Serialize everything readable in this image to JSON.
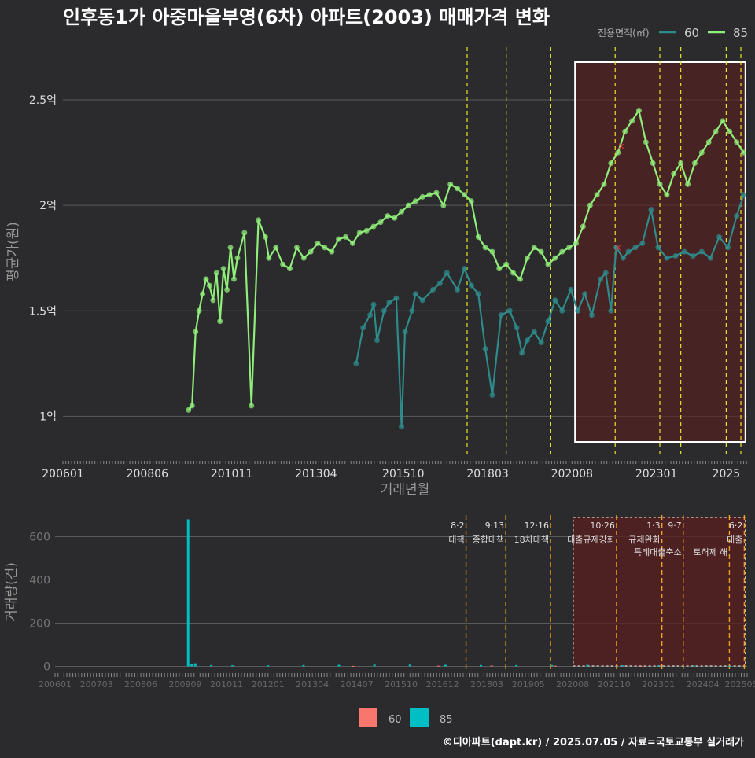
{
  "title": "인후동1가 아중마을부영(6차) 아파트(2003) 매매가격 변화",
  "credit": "©디아파트(dapt.kr) / 2025.07.05 / 자료=국토교통부 실거래가",
  "colors": {
    "background": "#2b2b2d",
    "grid": "#5a5a5a",
    "s60": "#2e8b8b",
    "s85": "#90ee7a",
    "bar60": "#f8766d",
    "bar85": "#00bfc4",
    "policy_line": "#e5e52a",
    "policy_line_bottom": "#f0a020",
    "highlight_fill": "#5a1e1e",
    "highlight_border": "#ffffff",
    "marker_x": "#e0303a"
  },
  "chart_data": [
    {
      "type": "line",
      "title": "인후동1가 아중마을부영(6차) 아파트(2003) 매매가격 변화",
      "xlabel": "거래년월",
      "ylabel": "평균가(원)",
      "legend_title": "전용면적(㎡)",
      "legend_position": "top-right",
      "x_ticks": [
        "200601",
        "200806",
        "201011",
        "201304",
        "201510",
        "201803",
        "202008",
        "202301",
        "2025"
      ],
      "y_ticks": [
        {
          "value": 1.0,
          "label": "1억"
        },
        {
          "value": 1.5,
          "label": "1.5억"
        },
        {
          "value": 2.0,
          "label": "2억"
        },
        {
          "value": 2.5,
          "label": "2.5억"
        }
      ],
      "xlim": [
        2006.0,
        2025.6
      ],
      "ylim": [
        0.8,
        2.75
      ],
      "grid": true,
      "highlight_range": [
        2020.67,
        2025.55
      ],
      "policy_dates": [
        2017.58,
        2018.7,
        2019.96,
        2021.82,
        2023.1,
        2023.7,
        2025.0,
        2025.42
      ],
      "series": [
        {
          "name": "60",
          "x": [
            2014.4,
            2014.6,
            2014.8,
            2014.9,
            2015.0,
            2015.2,
            2015.35,
            2015.55,
            2015.7,
            2015.8,
            2016.0,
            2016.1,
            2016.3,
            2016.6,
            2016.8,
            2017.0,
            2017.3,
            2017.5,
            2017.7,
            2017.9,
            2018.1,
            2018.3,
            2018.55,
            2018.8,
            2019.0,
            2019.15,
            2019.3,
            2019.5,
            2019.7,
            2019.9,
            2020.1,
            2020.3,
            2020.55,
            2020.75,
            2020.95,
            2021.15,
            2021.4,
            2021.55,
            2021.7,
            2021.85,
            2022.05,
            2022.2,
            2022.4,
            2022.6,
            2022.85,
            2023.05,
            2023.3,
            2023.55,
            2023.8,
            2024.05,
            2024.3,
            2024.55,
            2024.8,
            2025.05,
            2025.3,
            2025.5
          ],
          "y": [
            1.25,
            1.42,
            1.48,
            1.53,
            1.36,
            1.5,
            1.54,
            1.56,
            0.95,
            1.4,
            1.5,
            1.58,
            1.55,
            1.6,
            1.63,
            1.68,
            1.6,
            1.7,
            1.62,
            1.58,
            1.32,
            1.1,
            1.48,
            1.5,
            1.42,
            1.3,
            1.36,
            1.4,
            1.35,
            1.45,
            1.55,
            1.5,
            1.6,
            1.5,
            1.58,
            1.48,
            1.65,
            1.68,
            1.5,
            1.8,
            1.75,
            1.78,
            1.8,
            1.82,
            1.98,
            1.8,
            1.75,
            1.76,
            1.78,
            1.76,
            1.78,
            1.75,
            1.85,
            1.8,
            1.95,
            2.05
          ]
        },
        {
          "name": "85",
          "x": [
            2009.6,
            2009.7,
            2009.8,
            2009.9,
            2010.0,
            2010.1,
            2010.2,
            2010.3,
            2010.4,
            2010.5,
            2010.6,
            2010.7,
            2010.8,
            2010.9,
            2011.0,
            2011.2,
            2011.4,
            2011.6,
            2011.8,
            2011.9,
            2012.1,
            2012.3,
            2012.5,
            2012.7,
            2012.9,
            2013.1,
            2013.3,
            2013.5,
            2013.7,
            2013.9,
            2014.1,
            2014.3,
            2014.5,
            2014.7,
            2014.9,
            2015.1,
            2015.3,
            2015.5,
            2015.7,
            2015.9,
            2016.1,
            2016.3,
            2016.5,
            2016.7,
            2016.9,
            2017.1,
            2017.3,
            2017.5,
            2017.7,
            2017.9,
            2018.1,
            2018.3,
            2018.5,
            2018.7,
            2018.9,
            2019.1,
            2019.3,
            2019.5,
            2019.7,
            2019.9,
            2020.1,
            2020.3,
            2020.5,
            2020.7,
            2020.9,
            2021.1,
            2021.3,
            2021.5,
            2021.7,
            2021.9,
            2022.1,
            2022.3,
            2022.5,
            2022.7,
            2022.9,
            2023.1,
            2023.3,
            2023.5,
            2023.7,
            2023.9,
            2024.1,
            2024.3,
            2024.5,
            2024.7,
            2024.9,
            2025.1,
            2025.3,
            2025.5
          ],
          "y": [
            1.03,
            1.05,
            1.4,
            1.5,
            1.58,
            1.65,
            1.62,
            1.55,
            1.68,
            1.45,
            1.7,
            1.6,
            1.8,
            1.65,
            1.75,
            1.87,
            1.05,
            1.93,
            1.85,
            1.75,
            1.8,
            1.72,
            1.7,
            1.8,
            1.75,
            1.78,
            1.82,
            1.8,
            1.78,
            1.84,
            1.85,
            1.82,
            1.87,
            1.88,
            1.9,
            1.92,
            1.95,
            1.94,
            1.97,
            2.0,
            2.02,
            2.04,
            2.05,
            2.06,
            2.0,
            2.1,
            2.08,
            2.05,
            2.02,
            1.85,
            1.8,
            1.78,
            1.7,
            1.72,
            1.68,
            1.65,
            1.75,
            1.8,
            1.78,
            1.72,
            1.75,
            1.78,
            1.8,
            1.82,
            1.9,
            2.0,
            2.05,
            2.1,
            2.2,
            2.25,
            2.35,
            2.4,
            2.45,
            2.3,
            2.2,
            2.1,
            2.05,
            2.15,
            2.2,
            2.1,
            2.2,
            2.25,
            2.3,
            2.35,
            2.4,
            2.35,
            2.3,
            2.25
          ]
        }
      ],
      "markers_x": [
        {
          "x": 2022.0,
          "y": 2.28
        },
        {
          "x": 2021.9,
          "y": 1.8
        }
      ]
    },
    {
      "type": "bar",
      "xlabel": "",
      "ylabel": "거래량(건)",
      "legend_position": "bottom",
      "x_ticks": [
        "200601",
        "200703",
        "200806",
        "200909",
        "201011",
        "201201",
        "201304",
        "201407",
        "201510",
        "201612",
        "201803",
        "201905",
        "202008",
        "202110",
        "202301",
        "202404",
        "202505"
      ],
      "y_ticks": [
        0,
        200,
        400,
        600
      ],
      "ylim": [
        -20,
        700
      ],
      "xlim": [
        2006.0,
        2025.5
      ],
      "grid": true,
      "highlight_range": [
        2020.6,
        2025.45
      ],
      "series": [
        {
          "name": "60",
          "x": [
            2014.4,
            2016.8,
            2018.3,
            2020.1,
            2022.5
          ],
          "values": [
            2,
            3,
            4,
            3,
            2
          ]
        },
        {
          "name": "85",
          "x": [
            2009.75,
            2009.85,
            2009.95,
            2010.4,
            2011.0,
            2012.0,
            2013.0,
            2014.0,
            2015.0,
            2016.0,
            2017.0,
            2018.0,
            2019.0,
            2020.0,
            2021.0,
            2022.0,
            2023.0,
            2024.0,
            2025.0
          ],
          "values": [
            680,
            12,
            14,
            6,
            5,
            5,
            6,
            7,
            8,
            8,
            7,
            6,
            6,
            6,
            7,
            5,
            4,
            4,
            3
          ]
        }
      ],
      "annotations": [
        {
          "x": 2017.58,
          "date": "8·2",
          "label": "대책"
        },
        {
          "x": 2018.7,
          "date": "9·13",
          "label": "종합대책"
        },
        {
          "x": 2019.96,
          "date": "12·16",
          "label": "18차대책"
        },
        {
          "x": 2021.82,
          "date": "10·26",
          "label": "대출규제강화"
        },
        {
          "x": 2023.1,
          "date": "1·3",
          "label": "규제완화"
        },
        {
          "x": 2023.7,
          "date": "9·7",
          "label": "특례대출축소"
        },
        {
          "x": 2025.0,
          "date": "",
          "label": "토허제 해"
        },
        {
          "x": 2025.42,
          "date": "6·2",
          "label": "대출"
        }
      ]
    }
  ]
}
